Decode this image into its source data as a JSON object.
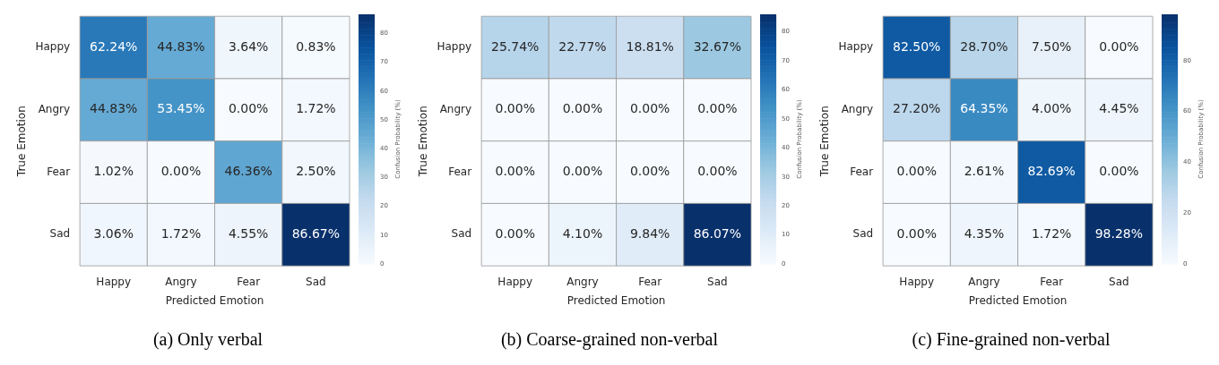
{
  "chart_data": [
    {
      "type": "heatmap",
      "title": "(a) Only verbal",
      "xlabel": "Predicted Emotion",
      "ylabel": "True Emotion",
      "clabel": "Confusion Probability (%)",
      "categories": [
        "Happy",
        "Angry",
        "Fear",
        "Sad"
      ],
      "y_categories": [
        "Happy",
        "Angry",
        "Fear",
        "Sad"
      ],
      "cells": [
        [
          62.24,
          44.83,
          3.64,
          0.83
        ],
        [
          44.83,
          53.45,
          0.0,
          1.72
        ],
        [
          1.02,
          0.0,
          46.36,
          2.5
        ],
        [
          3.06,
          1.72,
          4.55,
          86.67
        ]
      ],
      "cell_labels": [
        [
          "62.24%",
          "44.83%",
          "3.64%",
          "0.83%"
        ],
        [
          "44.83%",
          "53.45%",
          "0.00%",
          "1.72%"
        ],
        [
          "1.02%",
          "0.00%",
          "46.36%",
          "2.50%"
        ],
        [
          "3.06%",
          "1.72%",
          "4.55%",
          "86.67%"
        ]
      ],
      "clim": [
        0,
        86.67
      ],
      "cticks": [
        0,
        10,
        20,
        30,
        40,
        50,
        60,
        70,
        80
      ]
    },
    {
      "type": "heatmap",
      "title": "(b) Coarse-grained non-verbal",
      "xlabel": "Predicted Emotion",
      "ylabel": "True Emotion",
      "clabel": "Confusion Probability (%)",
      "categories": [
        "Happy",
        "Angry",
        "Fear",
        "Sad"
      ],
      "y_categories": [
        "Happy",
        "Angry",
        "Fear",
        "Sad"
      ],
      "cells": [
        [
          25.74,
          22.77,
          18.81,
          32.67
        ],
        [
          0.0,
          0.0,
          0.0,
          0.0
        ],
        [
          0.0,
          0.0,
          0.0,
          0.0
        ],
        [
          0.0,
          4.1,
          9.84,
          86.07
        ]
      ],
      "cell_labels": [
        [
          "25.74%",
          "22.77%",
          "18.81%",
          "32.67%"
        ],
        [
          "0.00%",
          "0.00%",
          "0.00%",
          "0.00%"
        ],
        [
          "0.00%",
          "0.00%",
          "0.00%",
          "0.00%"
        ],
        [
          "0.00%",
          "4.10%",
          "9.84%",
          "86.07%"
        ]
      ],
      "clim": [
        0,
        86.07
      ],
      "cticks": [
        0,
        10,
        20,
        30,
        40,
        50,
        60,
        70,
        80
      ]
    },
    {
      "type": "heatmap",
      "title": "(c) Fine-grained non-verbal",
      "xlabel": "Predicted Emotion",
      "ylabel": "True Emotion",
      "clabel": "Confusion Probability (%)",
      "categories": [
        "Happy",
        "Angry",
        "Fear",
        "Sad"
      ],
      "y_categories": [
        "Happy",
        "Angry",
        "Fear",
        "Sad"
      ],
      "cells": [
        [
          82.5,
          28.7,
          7.5,
          0.0
        ],
        [
          27.2,
          64.35,
          4.0,
          4.45
        ],
        [
          0.0,
          2.61,
          82.69,
          0.0
        ],
        [
          0.0,
          4.35,
          1.72,
          98.28
        ]
      ],
      "cell_labels": [
        [
          "82.50%",
          "28.70%",
          "7.50%",
          "0.00%"
        ],
        [
          "27.20%",
          "64.35%",
          "4.00%",
          "4.45%"
        ],
        [
          "0.00%",
          "2.61%",
          "82.69%",
          "0.00%"
        ],
        [
          "0.00%",
          "4.35%",
          "1.72%",
          "98.28%"
        ]
      ],
      "clim": [
        0,
        98.28
      ],
      "cticks": [
        0,
        20,
        40,
        60,
        80
      ]
    }
  ]
}
